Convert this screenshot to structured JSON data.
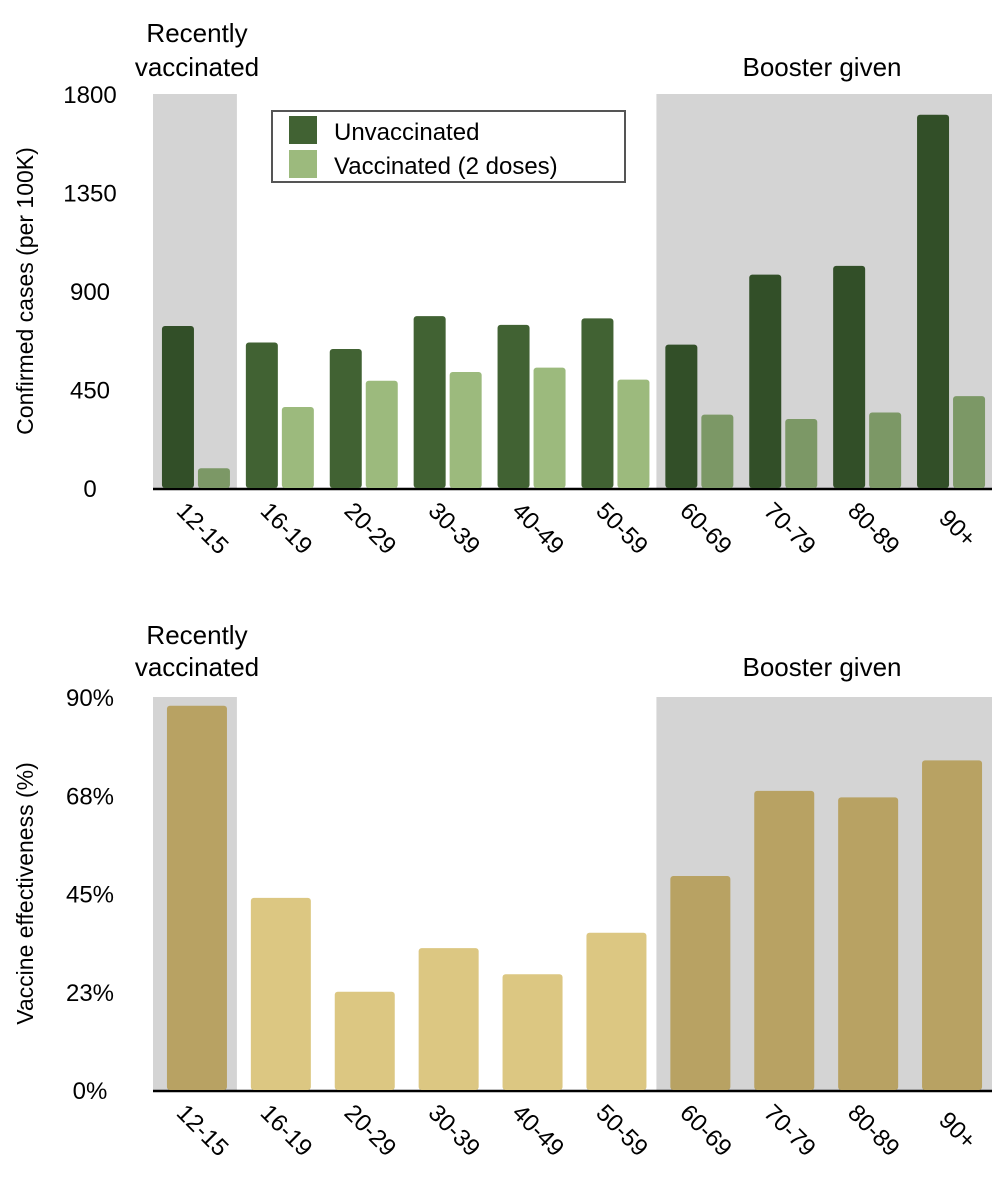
{
  "chart_data": [
    {
      "type": "bar",
      "categories": [
        "12-15",
        "16-19",
        "20-29",
        "30-39",
        "40-49",
        "50-59",
        "60-69",
        "70-79",
        "80-89",
        "90+"
      ],
      "series": [
        {
          "name": "Unvaccinated",
          "values": [
            740,
            665,
            635,
            785,
            745,
            775,
            655,
            975,
            1015,
            1705
          ]
        },
        {
          "name": "Vaccinated (2 doses)",
          "values": [
            90,
            370,
            490,
            530,
            550,
            495,
            335,
            315,
            345,
            420
          ]
        }
      ],
      "ylabel": "Confirmed cases (per 100K)",
      "ylim": [
        0,
        1800
      ],
      "yticks": [
        "0",
        "450",
        "900",
        "1350",
        "1800"
      ],
      "ytick_values": [
        0,
        450,
        900,
        1350,
        1800
      ],
      "legend_position": "top-center",
      "shaded_groups": [
        {
          "label": "Recently vaccinated",
          "categories": [
            "12-15"
          ]
        },
        {
          "label": "Booster given",
          "categories": [
            "60-69",
            "70-79",
            "80-89",
            "90+"
          ]
        }
      ],
      "colors": {
        "unvaccinated": "#416233",
        "unvaccinated_shaded": "#324f28",
        "vaccinated": "#9cba7d",
        "vaccinated_shaded": "#7c9866",
        "shade": "#d4d4d4"
      }
    },
    {
      "type": "bar",
      "categories": [
        "12-15",
        "16-19",
        "20-29",
        "30-39",
        "40-49",
        "50-59",
        "60-69",
        "70-79",
        "80-89",
        "90+"
      ],
      "series": [
        {
          "name": "",
          "values": [
            88,
            44,
            22.5,
            32.5,
            26.5,
            36,
            49,
            68.5,
            67,
            75.5
          ]
        }
      ],
      "ylabel": "Vaccine effectiveness (%)",
      "ylim": [
        0,
        90
      ],
      "yticks": [
        "0%",
        "23%",
        "45%",
        "68%",
        "90%"
      ],
      "ytick_values": [
        0,
        22.5,
        45,
        67.5,
        90
      ],
      "shaded_groups": [
        {
          "label": "Recently vaccinated",
          "categories": [
            "12-15"
          ]
        },
        {
          "label": "Booster given",
          "categories": [
            "60-69",
            "70-79",
            "80-89",
            "90+"
          ]
        }
      ],
      "colors": {
        "bar": "#dcc782",
        "bar_shaded": "#b8a263",
        "shade": "#d4d4d4"
      }
    }
  ]
}
